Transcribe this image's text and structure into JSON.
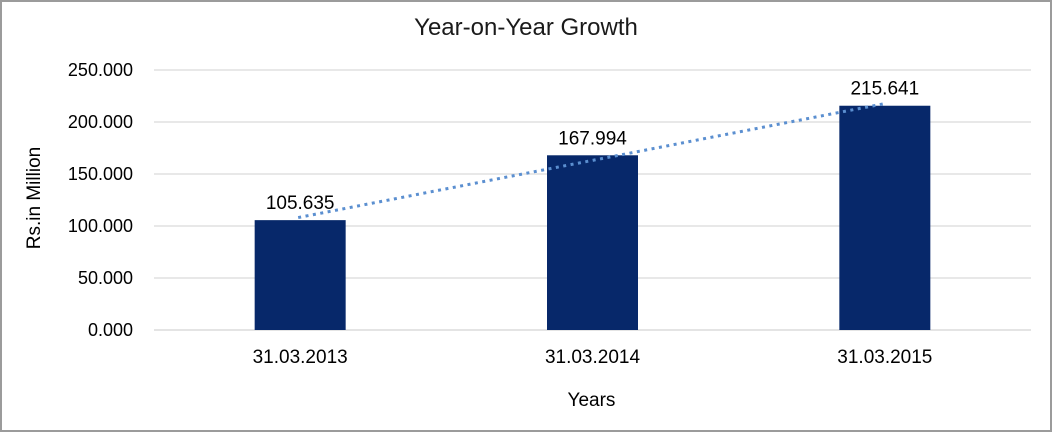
{
  "figure": {
    "title": "Year-on-Year Growth",
    "y_axis_title": "Rs.in Million",
    "x_axis_title": "Years"
  },
  "chart_data": {
    "type": "bar",
    "title": "Year-on-Year Growth",
    "xlabel": "Years",
    "ylabel": "Rs.in Million",
    "categories": [
      "31.03.2013",
      "31.03.2014",
      "31.03.2015"
    ],
    "values": [
      105.635,
      167.994,
      215.641
    ],
    "data_labels": [
      "105.635",
      "167.994",
      "215.641"
    ],
    "ylim": [
      0,
      250
    ],
    "y_tick_step": 50,
    "y_tick_labels": [
      "0.000",
      "50.000",
      "100.000",
      "150.000",
      "200.000",
      "250.000"
    ],
    "grid": true,
    "legend_position": "none",
    "trendline": {
      "type": "linear",
      "style": "dotted",
      "start_value": 108.09,
      "end_value": 218.09
    },
    "colors": {
      "bar": "#07286a",
      "trendline": "#5b8fd0",
      "gridline": "#d9d9d9",
      "axis_line": "#d4d4d4",
      "text": "#000000",
      "border": "#9b9b9b",
      "background": "#ffffff"
    }
  }
}
